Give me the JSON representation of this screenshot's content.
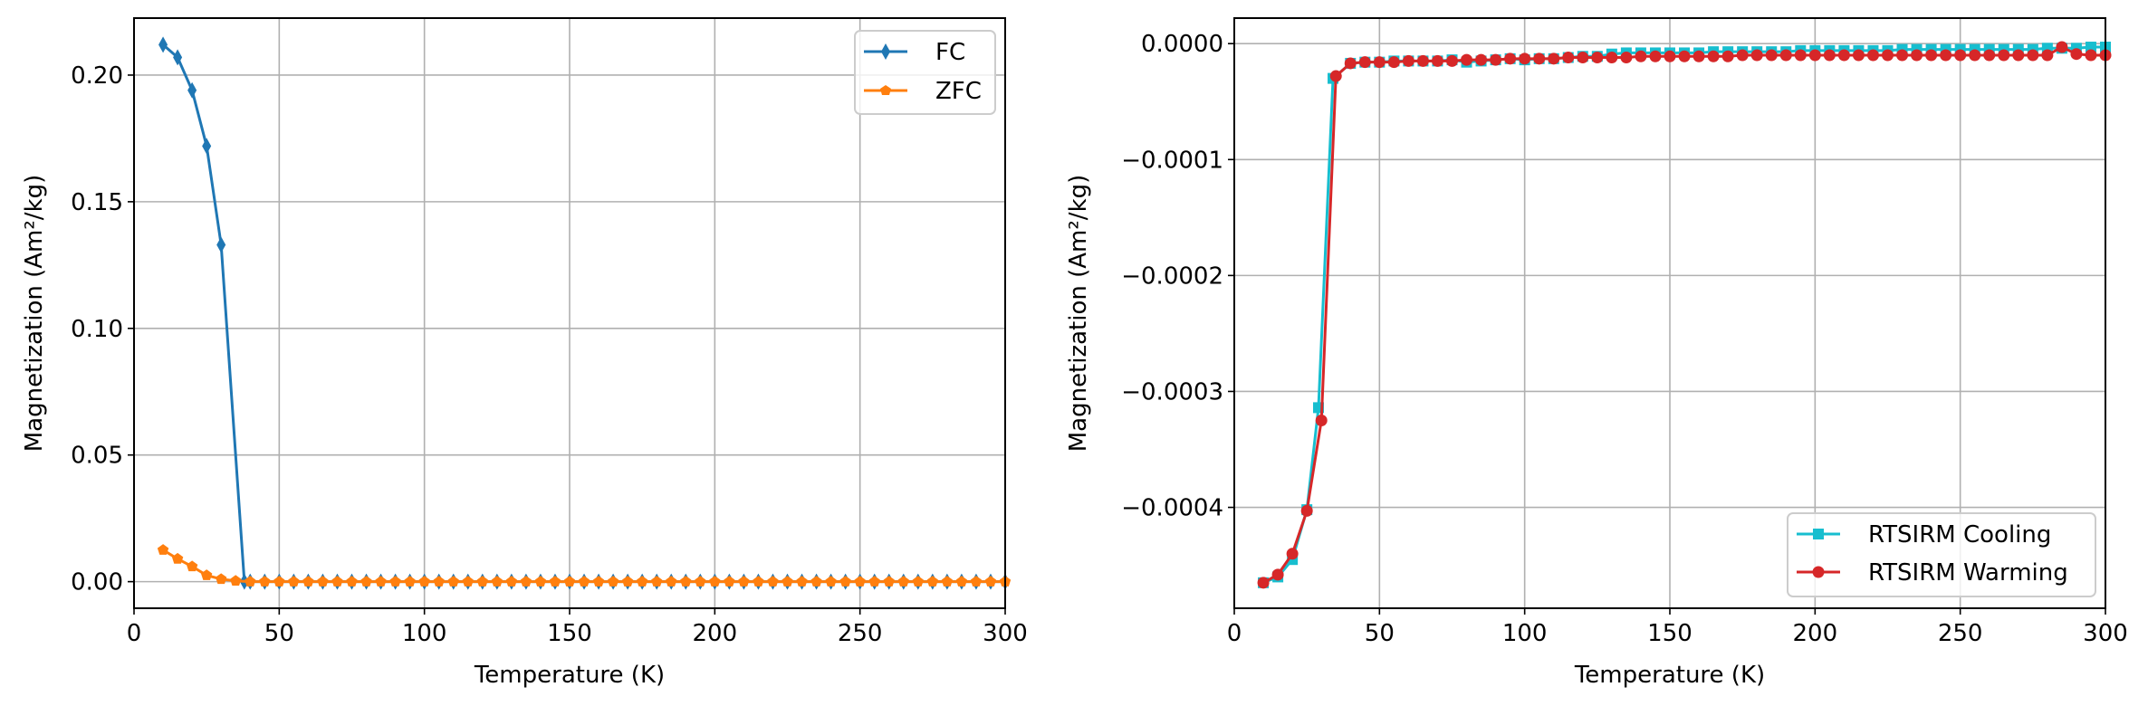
{
  "chart_data": [
    {
      "type": "line",
      "xlabel": "Temperature (K)",
      "ylabel": "Magnetization (Am²/kg)",
      "xlim": [
        0,
        300
      ],
      "ylim": [
        -0.0105,
        0.2225
      ],
      "xticks": [
        "0",
        "50",
        "100",
        "150",
        "200",
        "250",
        "300"
      ],
      "yticks": [
        "0.00",
        "0.05",
        "0.10",
        "0.15",
        "0.20"
      ],
      "grid": true,
      "legend_position": "top-right",
      "series": [
        {
          "name": "FC",
          "color": "#1f77b4",
          "marker": "thin-diamond",
          "x": [
            10,
            15,
            20,
            25,
            30,
            38,
            40,
            45,
            50,
            55,
            60,
            65,
            70,
            75,
            80,
            85,
            90,
            95,
            100,
            105,
            110,
            115,
            120,
            125,
            130,
            135,
            140,
            145,
            150,
            155,
            160,
            165,
            170,
            175,
            180,
            185,
            190,
            195,
            200,
            205,
            210,
            215,
            220,
            225,
            230,
            235,
            240,
            245,
            250,
            255,
            260,
            265,
            270,
            275,
            280,
            285,
            290,
            295,
            300
          ],
          "y": [
            0.212,
            0.207,
            0.194,
            0.172,
            0.133,
            0.0,
            0.0,
            0.0,
            0.0,
            0.0,
            0.0,
            0.0,
            0.0,
            0.0,
            0.0,
            0.0,
            0.0,
            0.0,
            0.0,
            0.0,
            0.0,
            0.0,
            0.0,
            0.0,
            0.0,
            0.0,
            0.0,
            0.0,
            0.0,
            0.0,
            0.0,
            0.0,
            0.0,
            0.0,
            0.0,
            0.0,
            0.0,
            0.0,
            0.0,
            0.0,
            0.0,
            0.0,
            0.0,
            0.0,
            0.0,
            0.0,
            0.0,
            0.0,
            0.0,
            0.0,
            0.0,
            0.0,
            0.0,
            0.0,
            0.0,
            0.0,
            0.0,
            0.0,
            0.0
          ]
        },
        {
          "name": "ZFC",
          "color": "#ff7f0e",
          "marker": "pentagon",
          "x": [
            10,
            15,
            20,
            25,
            30,
            35,
            40,
            45,
            50,
            55,
            60,
            65,
            70,
            75,
            80,
            85,
            90,
            95,
            100,
            105,
            110,
            115,
            120,
            125,
            130,
            135,
            140,
            145,
            150,
            155,
            160,
            165,
            170,
            175,
            180,
            185,
            190,
            195,
            200,
            205,
            210,
            215,
            220,
            225,
            230,
            235,
            240,
            245,
            250,
            255,
            260,
            265,
            270,
            275,
            280,
            285,
            290,
            295,
            300
          ],
          "y": [
            0.0125,
            0.009,
            0.006,
            0.0025,
            0.001,
            0.0003,
            0.0,
            0.0,
            0.0,
            0.0,
            0.0,
            0.0,
            0.0,
            0.0,
            0.0,
            0.0,
            0.0,
            0.0,
            0.0,
            0.0,
            0.0,
            0.0,
            0.0,
            0.0,
            0.0,
            0.0,
            0.0,
            0.0,
            0.0,
            0.0,
            0.0,
            0.0,
            0.0,
            0.0,
            0.0,
            0.0,
            0.0,
            0.0,
            0.0,
            0.0,
            0.0,
            0.0,
            0.0,
            0.0,
            0.0,
            0.0,
            0.0,
            0.0,
            0.0,
            0.0,
            0.0,
            0.0,
            0.0,
            0.0,
            0.0,
            0.0,
            0.0,
            0.0,
            0.0
          ]
        }
      ]
    },
    {
      "type": "line",
      "xlabel": "Temperature (K)",
      "ylabel": "Magnetization (Am²/kg)",
      "xlim": [
        0,
        300
      ],
      "ylim": [
        -0.000487,
        2.2e-05
      ],
      "xticks": [
        "0",
        "50",
        "100",
        "150",
        "200",
        "250",
        "300"
      ],
      "yticks": [
        "−0.0004",
        "−0.0003",
        "−0.0002",
        "−0.0001",
        "0.0000"
      ],
      "grid": true,
      "legend_position": "bottom-right",
      "series": [
        {
          "name": "RTSIRM Cooling",
          "color": "#17becf",
          "marker": "square",
          "x": [
            10,
            15,
            20,
            25,
            29,
            34,
            40,
            45,
            50,
            55,
            60,
            65,
            70,
            75,
            80,
            85,
            90,
            95,
            100,
            105,
            110,
            115,
            120,
            125,
            130,
            135,
            140,
            145,
            150,
            155,
            160,
            165,
            170,
            175,
            180,
            185,
            190,
            195,
            200,
            205,
            210,
            215,
            220,
            225,
            230,
            235,
            240,
            245,
            250,
            255,
            260,
            265,
            270,
            275,
            280,
            285,
            290,
            295,
            300
          ],
          "y": [
            -0.000465,
            -0.00046,
            -0.000445,
            -0.000402,
            -0.000314,
            -3e-05,
            -1.7e-05,
            -1.6e-05,
            -1.6e-05,
            -1.5e-05,
            -1.5e-05,
            -1.5e-05,
            -1.5e-05,
            -1.4e-05,
            -1.6e-05,
            -1.5e-05,
            -1.4e-05,
            -1.3e-05,
            -1.4e-05,
            -1.3e-05,
            -1.3e-05,
            -1.2e-05,
            -1.1e-05,
            -1.1e-05,
            -9e-06,
            -8e-06,
            -8e-06,
            -8e-06,
            -8e-06,
            -8e-06,
            -8e-06,
            -7e-06,
            -7e-06,
            -7e-06,
            -7e-06,
            -7e-06,
            -7e-06,
            -6e-06,
            -6e-06,
            -6e-06,
            -6e-06,
            -6e-06,
            -6e-06,
            -6e-06,
            -5e-06,
            -5e-06,
            -5e-06,
            -5e-06,
            -5e-06,
            -5e-06,
            -5e-06,
            -5e-06,
            -5e-06,
            -5e-06,
            -4e-06,
            -4e-06,
            -4e-06,
            -3e-06,
            -3e-06
          ]
        },
        {
          "name": "RTSIRM Warming",
          "color": "#d62728",
          "marker": "circle",
          "x": [
            10,
            15,
            20,
            25,
            30,
            35,
            40,
            45,
            50,
            55,
            60,
            65,
            70,
            75,
            80,
            85,
            90,
            95,
            100,
            105,
            110,
            115,
            120,
            125,
            130,
            135,
            140,
            145,
            150,
            155,
            160,
            165,
            170,
            175,
            180,
            185,
            190,
            195,
            200,
            205,
            210,
            215,
            220,
            225,
            230,
            235,
            240,
            245,
            250,
            255,
            260,
            265,
            270,
            275,
            280,
            285,
            290,
            295,
            300
          ],
          "y": [
            -0.000465,
            -0.000458,
            -0.00044,
            -0.000403,
            -0.000325,
            -2.8e-05,
            -1.7e-05,
            -1.6e-05,
            -1.6e-05,
            -1.6e-05,
            -1.5e-05,
            -1.5e-05,
            -1.5e-05,
            -1.5e-05,
            -1.4e-05,
            -1.4e-05,
            -1.4e-05,
            -1.3e-05,
            -1.3e-05,
            -1.3e-05,
            -1.3e-05,
            -1.2e-05,
            -1.2e-05,
            -1.2e-05,
            -1.2e-05,
            -1.2e-05,
            -1.1e-05,
            -1.1e-05,
            -1.1e-05,
            -1.1e-05,
            -1.1e-05,
            -1.1e-05,
            -1.1e-05,
            -1e-05,
            -1e-05,
            -1e-05,
            -1e-05,
            -1e-05,
            -1e-05,
            -1e-05,
            -1e-05,
            -1e-05,
            -1e-05,
            -1e-05,
            -1e-05,
            -1e-05,
            -1e-05,
            -1e-05,
            -1e-05,
            -1e-05,
            -1e-05,
            -1e-05,
            -1e-05,
            -1e-05,
            -1e-05,
            -3e-06,
            -9e-06,
            -1e-05,
            -1e-05
          ]
        }
      ]
    }
  ]
}
